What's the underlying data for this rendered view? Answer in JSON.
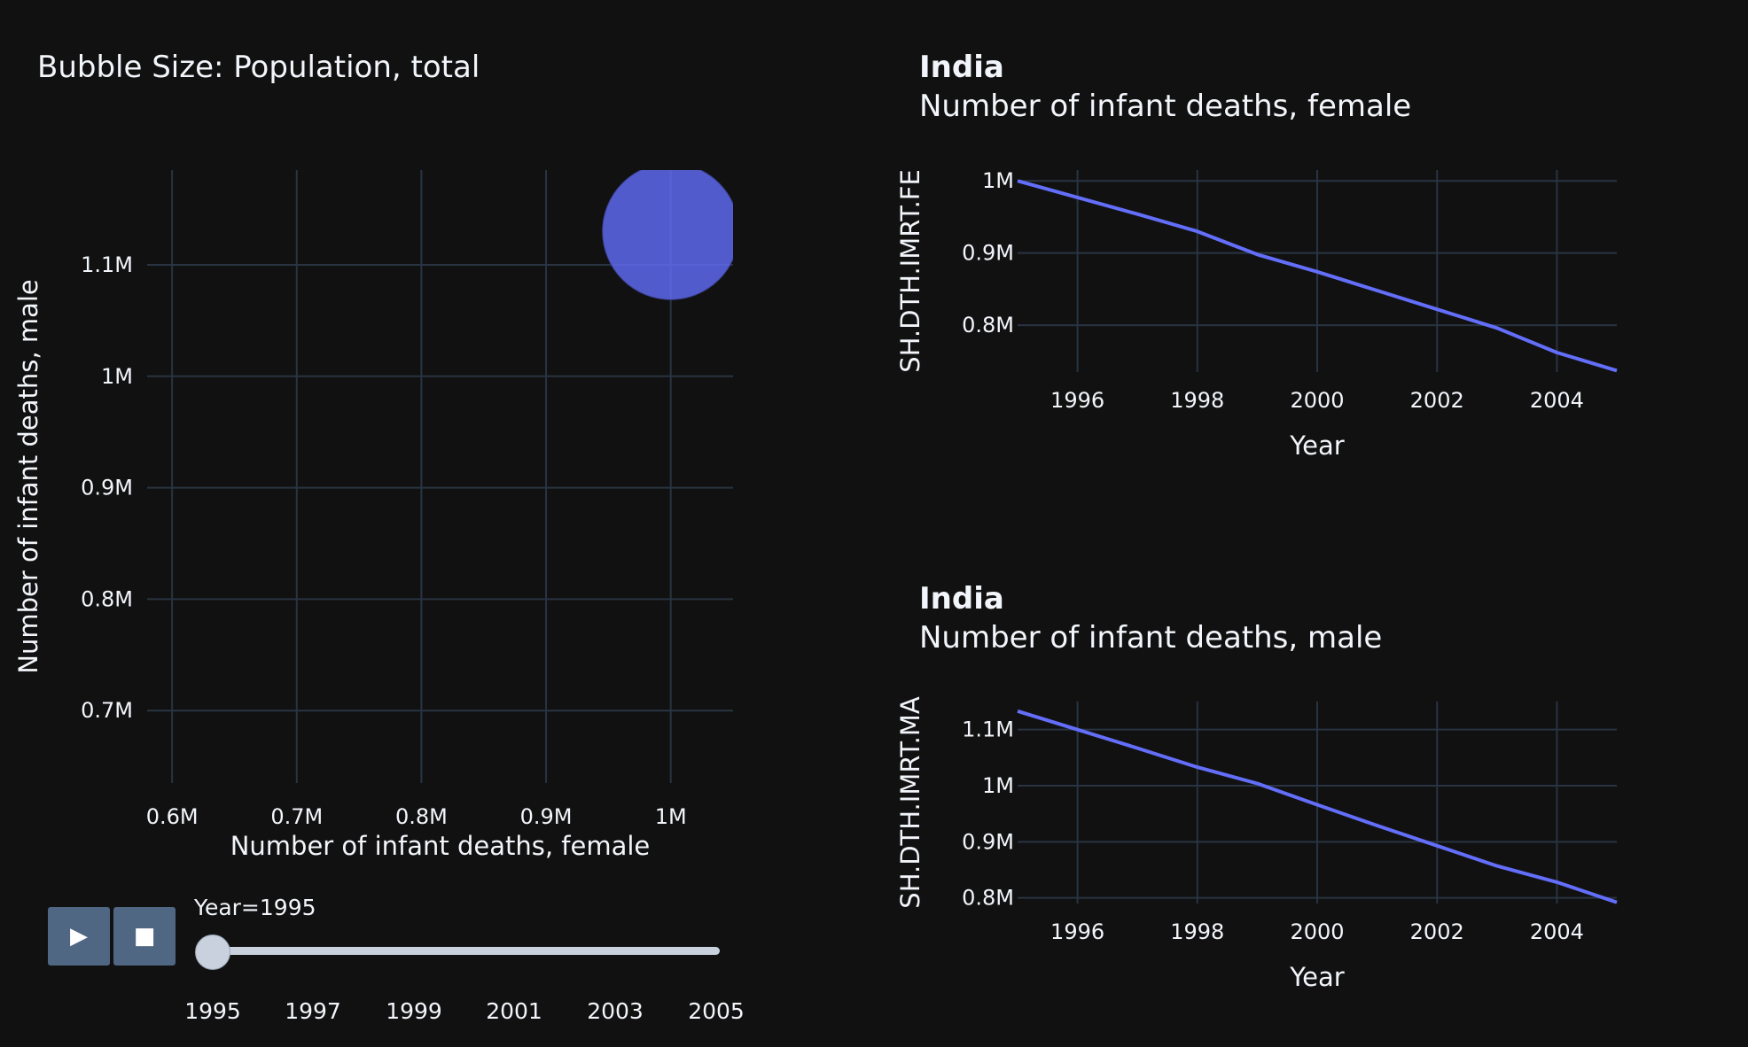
{
  "colors": {
    "background": "#111111",
    "grid": "#283442",
    "series": "#636efa",
    "text": "#f2f5fa",
    "button": "#506784",
    "slider": "#c8d1dd"
  },
  "scatter": {
    "title": "Bubble Size: Population, total",
    "xlabel": "Number of infant deaths, female",
    "ylabel": "Number of infant deaths, male",
    "xticks": [
      {
        "v": 600000,
        "label": "0.6M"
      },
      {
        "v": 700000,
        "label": "0.7M"
      },
      {
        "v": 800000,
        "label": "0.8M"
      },
      {
        "v": 900000,
        "label": "0.9M"
      },
      {
        "v": 1000000,
        "label": "1M"
      }
    ],
    "yticks": [
      {
        "v": 700000,
        "label": "0.7M"
      },
      {
        "v": 800000,
        "label": "0.8M"
      },
      {
        "v": 900000,
        "label": "0.9M"
      },
      {
        "v": 1000000,
        "label": "1M"
      },
      {
        "v": 1100000,
        "label": "1.1M"
      }
    ]
  },
  "female_chart": {
    "title": "India",
    "subtitle": "Number of infant deaths, female",
    "ylabel": "SH.DTH.IMRT.FE",
    "xlabel": "Year",
    "yticks": [
      {
        "v": 800000,
        "label": "0.8M"
      },
      {
        "v": 900000,
        "label": "0.9M"
      },
      {
        "v": 1000000,
        "label": "1M"
      }
    ]
  },
  "male_chart": {
    "title": "India",
    "subtitle": "Number of infant deaths, male",
    "ylabel": "SH.DTH.IMRT.MA",
    "xlabel": "Year",
    "yticks": [
      {
        "v": 800000,
        "label": "0.8M"
      },
      {
        "v": 900000,
        "label": "0.9M"
      },
      {
        "v": 1000000,
        "label": "1M"
      },
      {
        "v": 1100000,
        "label": "1.1M"
      }
    ]
  },
  "year_ticks": [
    1996,
    1998,
    2000,
    2002,
    2004
  ],
  "controls": {
    "play_icon": "play-icon",
    "stop_icon": "stop-icon",
    "slider_label": "Year=1995",
    "slider_value": 1995,
    "slider_ticks": [
      "1995",
      "1997",
      "1999",
      "2001",
      "2003",
      "2005"
    ]
  },
  "chart_data": [
    {
      "type": "scatter",
      "title": "Bubble Size: Population, total",
      "xlabel": "Number of infant deaths, female",
      "ylabel": "Number of infant deaths, male",
      "xlim": [
        580000,
        1050000
      ],
      "ylim": [
        635000,
        1185000
      ],
      "points": [
        {
          "year": 1995,
          "x": 1000000,
          "y": 1130000
        }
      ]
    },
    {
      "type": "line",
      "title": "India",
      "subtitle": "Number of infant deaths, female",
      "xlabel": "Year",
      "ylabel": "SH.DTH.IMRT.FE",
      "xlim": [
        1995,
        2005
      ],
      "ylim": [
        735000,
        1015000
      ],
      "x": [
        1995,
        1996,
        1997,
        1998,
        1999,
        2000,
        2001,
        2002,
        2003,
        2004,
        2005
      ],
      "values": [
        1000000,
        977000,
        954000,
        930000,
        898000,
        874000,
        848000,
        822000,
        796000,
        762000,
        737000
      ]
    },
    {
      "type": "line",
      "title": "India",
      "subtitle": "Number of infant deaths, male",
      "xlabel": "Year",
      "ylabel": "SH.DTH.IMRT.MA",
      "xlim": [
        1995,
        2005
      ],
      "ylim": [
        790000,
        1150000
      ],
      "x": [
        1995,
        1996,
        1997,
        1998,
        1999,
        2000,
        2001,
        2002,
        2003,
        2004,
        2005
      ],
      "values": [
        1133000,
        1100000,
        1067000,
        1033000,
        1004000,
        966000,
        929000,
        893000,
        857000,
        828000,
        792000
      ]
    }
  ]
}
